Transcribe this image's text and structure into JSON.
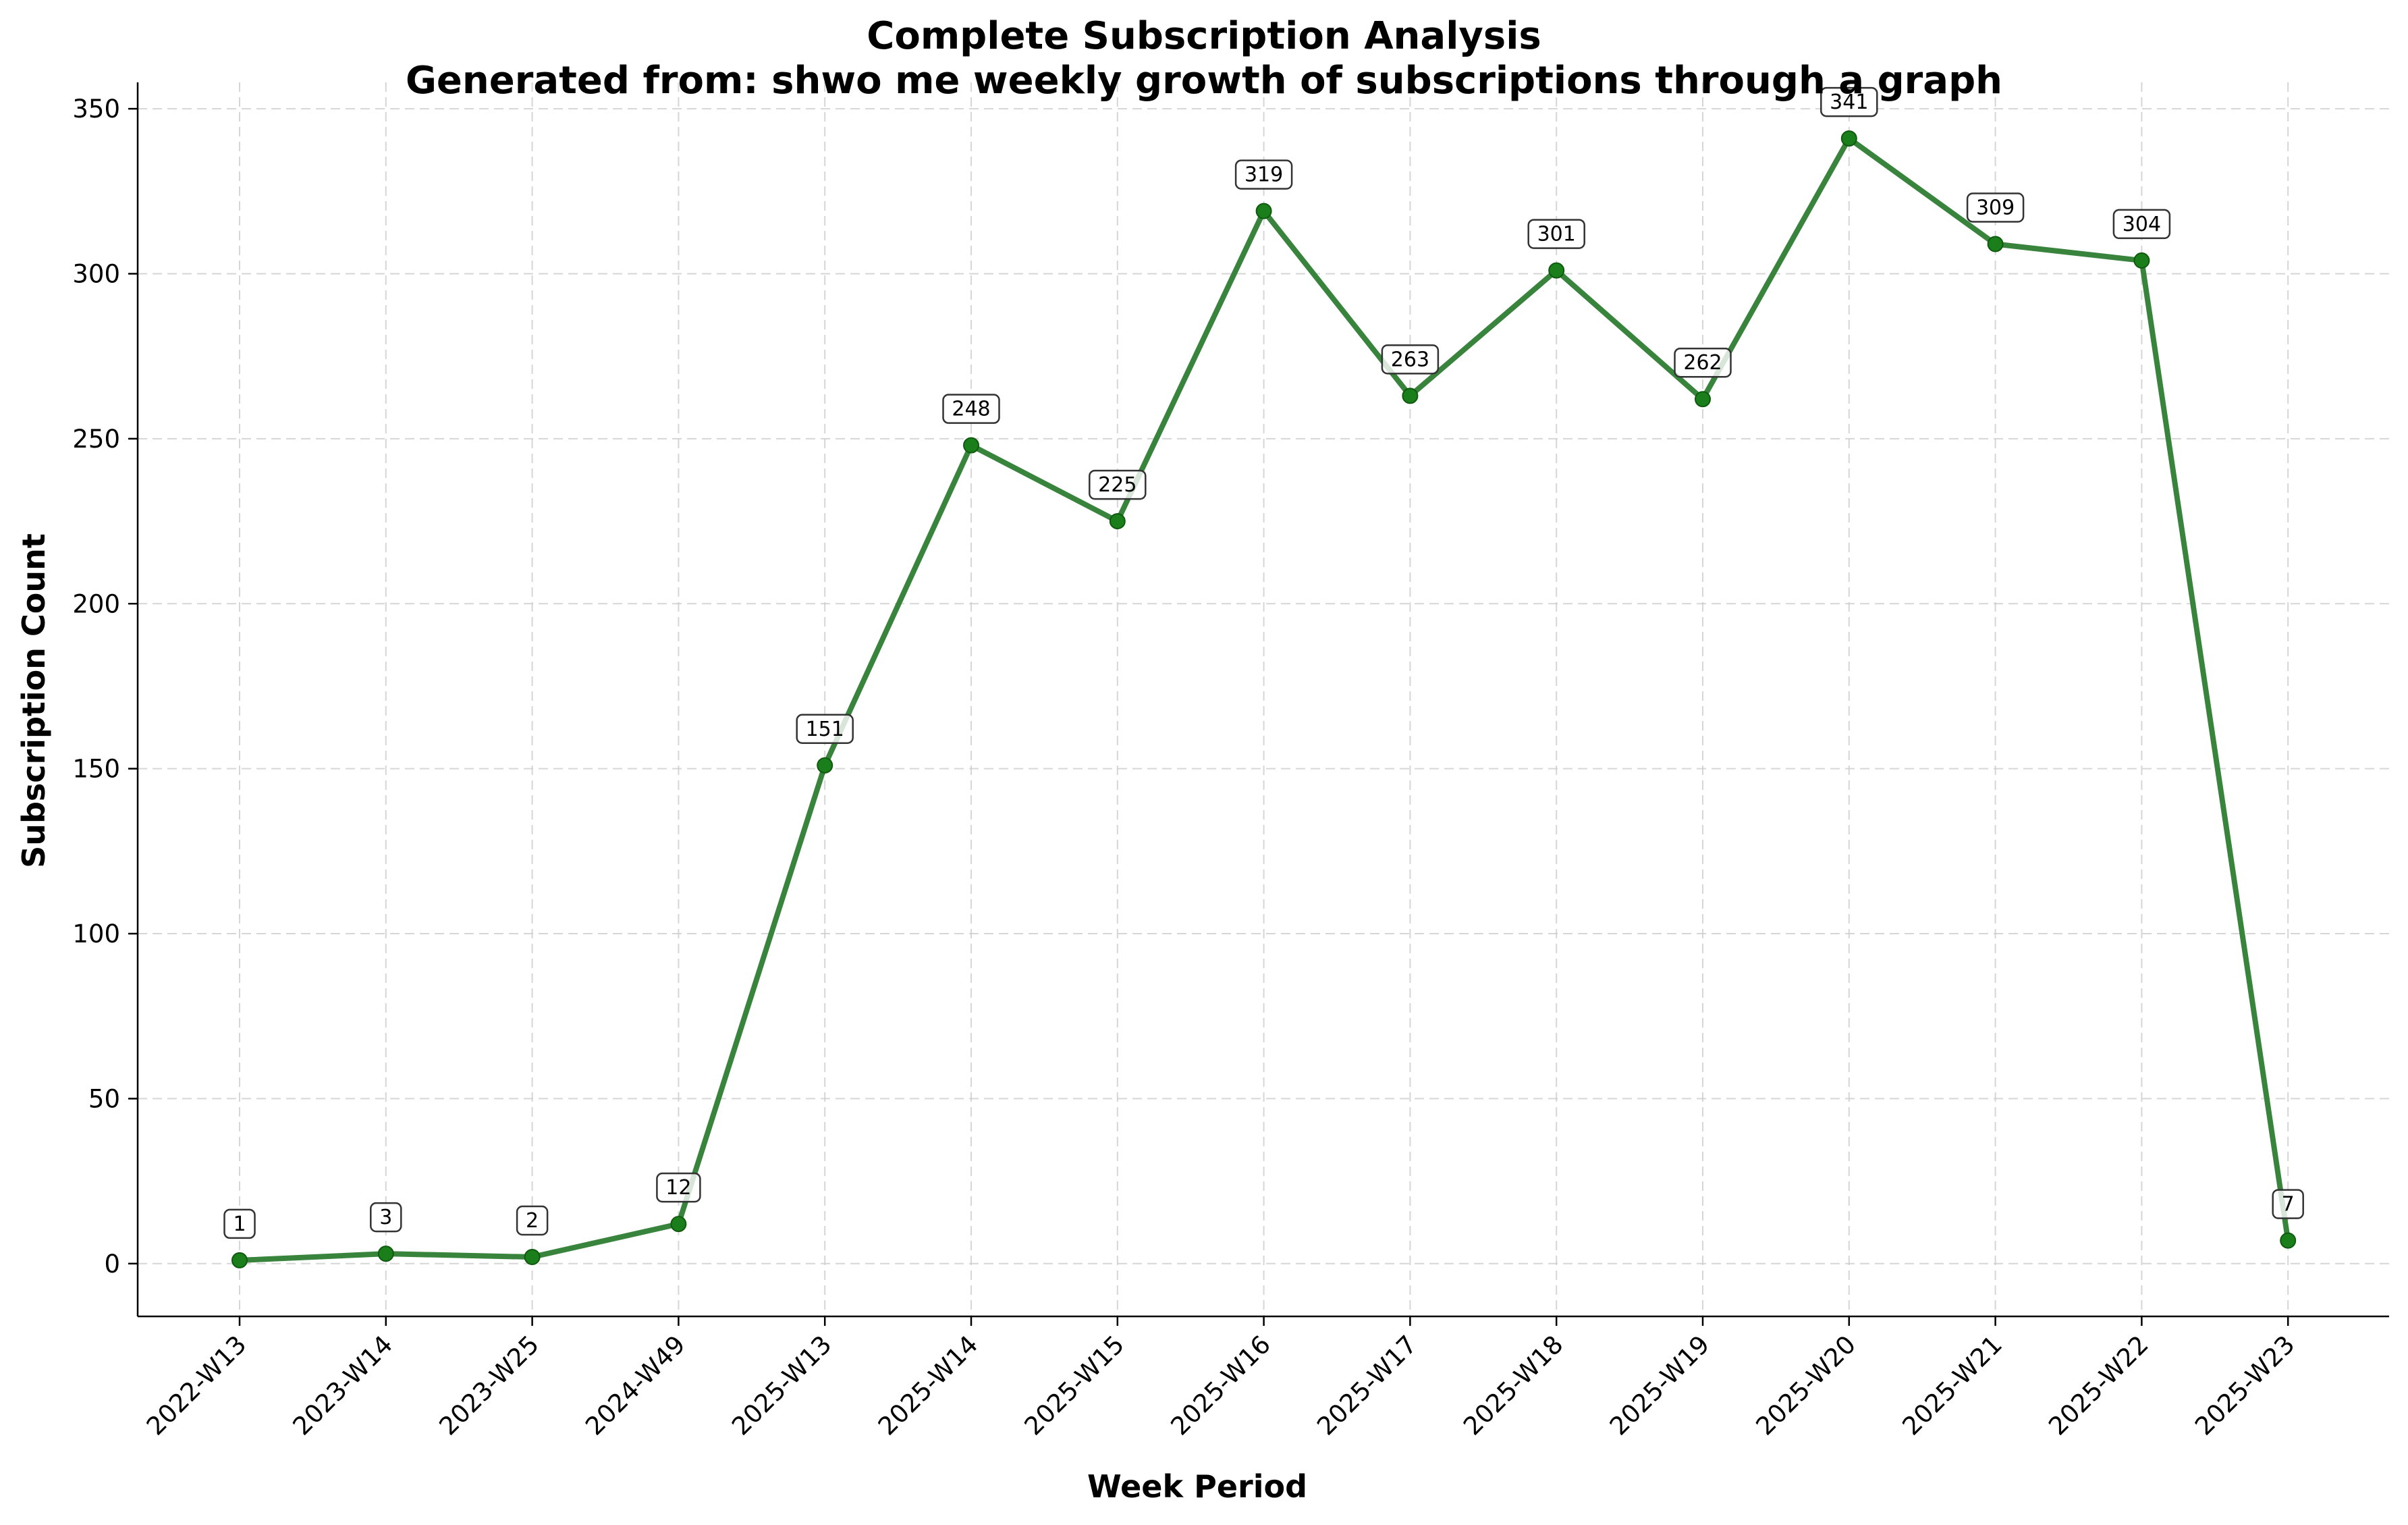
{
  "chart_data": {
    "type": "line",
    "title": "Complete Subscription Analysis",
    "subtitle": "Generated from: shwo me weekly growth of subscriptions through a graph",
    "xlabel": "Week Period",
    "ylabel": "Subscription Count",
    "categories": [
      "2022-W13",
      "2023-W14",
      "2023-W25",
      "2024-W49",
      "2025-W13",
      "2025-W14",
      "2025-W15",
      "2025-W16",
      "2025-W17",
      "2025-W18",
      "2025-W19",
      "2025-W20",
      "2025-W21",
      "2025-W22",
      "2025-W23"
    ],
    "series": [
      {
        "values": [
          1,
          3,
          2,
          12,
          151,
          248,
          225,
          319,
          263,
          301,
          262,
          341,
          309,
          304,
          7
        ]
      }
    ],
    "y_ticks": [
      0,
      50,
      100,
      150,
      200,
      250,
      300,
      350
    ],
    "ylim": [
      -16,
      358
    ],
    "grid": true,
    "line_color": "#2e7d32",
    "marker_color": "#1a7f1a"
  }
}
